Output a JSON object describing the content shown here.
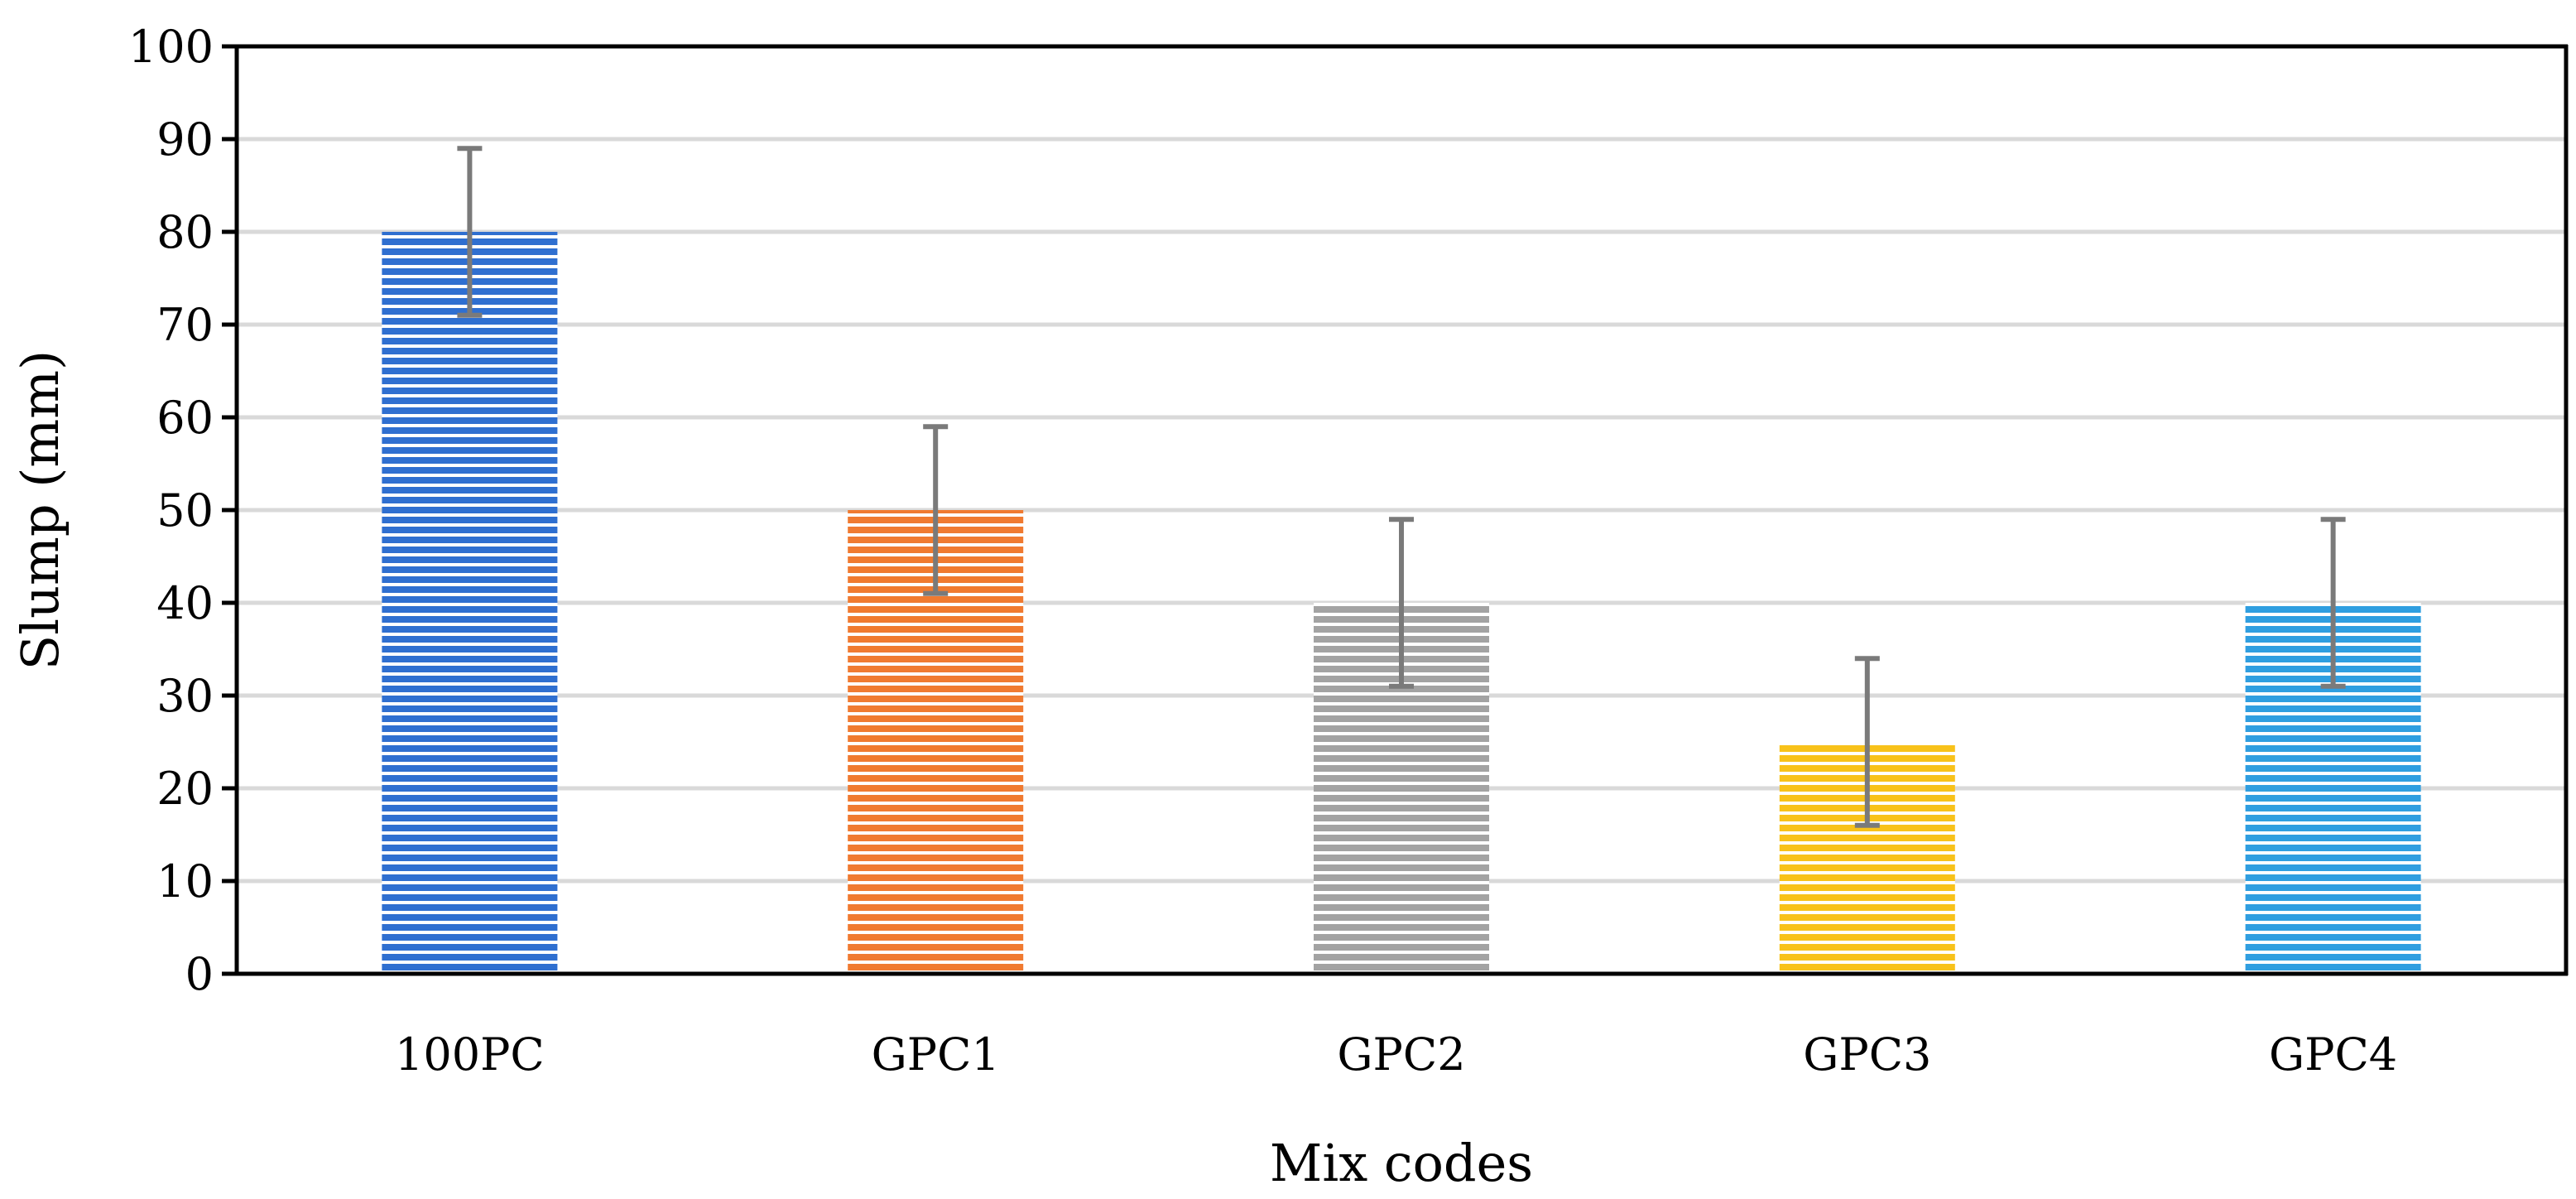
{
  "chart_data": {
    "type": "bar",
    "title": "",
    "xlabel": "Mix codes",
    "ylabel": "Slump (mm)",
    "ylim": [
      0,
      100
    ],
    "yticks": [
      0,
      10,
      20,
      30,
      40,
      50,
      60,
      70,
      80,
      90,
      100
    ],
    "grid": true,
    "categories": [
      "100PC",
      "GPC1",
      "GPC2",
      "GPC3",
      "GPC4"
    ],
    "values": [
      80,
      50,
      40,
      25,
      40
    ],
    "error_bars": [
      {
        "low": 71,
        "high": 89
      },
      {
        "low": 41,
        "high": 59
      },
      {
        "low": 31,
        "high": 49
      },
      {
        "low": 16,
        "high": 34
      },
      {
        "low": 31,
        "high": 49
      }
    ],
    "colors": [
      "#2f6fd0",
      "#f07a30",
      "#a3a3a3",
      "#f8c21a",
      "#2f9ee0"
    ],
    "pattern": "horizontal-stripes",
    "grid_color": "#d9d9d9",
    "errorbar_color": "#7a7a7a",
    "axis_color": "#000000"
  }
}
